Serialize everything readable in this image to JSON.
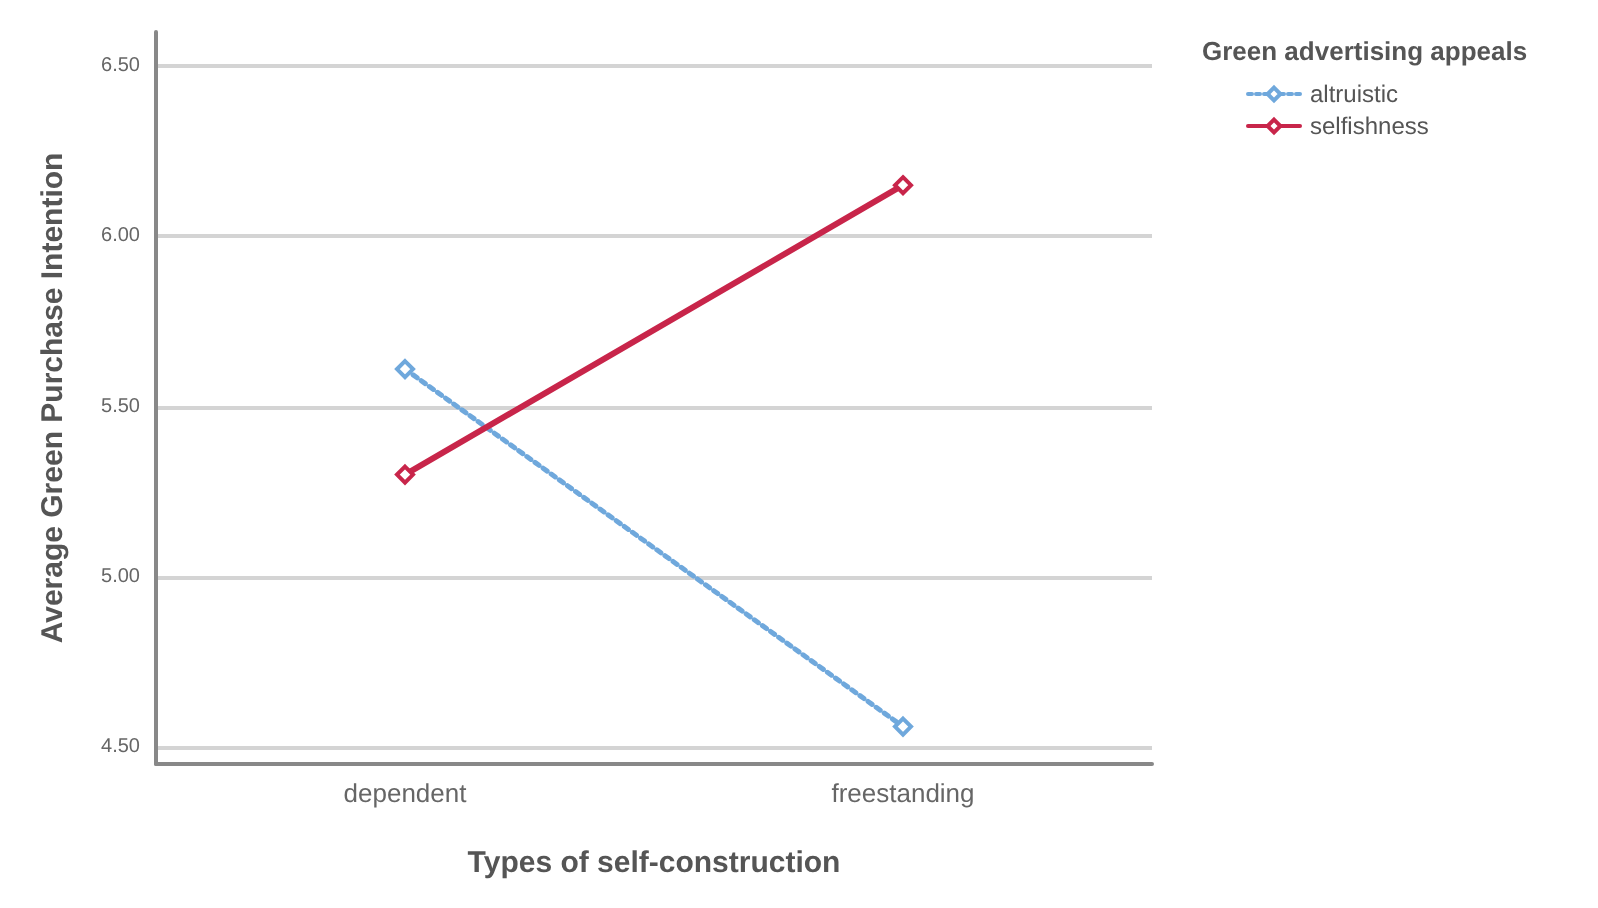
{
  "chart_data": {
    "type": "line",
    "xlabel": "Types of self-construction",
    "ylabel": "Average Green Purchase Intention",
    "legend_title": "Green advertising appeals",
    "categories": [
      "dependent",
      "freestanding"
    ],
    "series": [
      {
        "name": "altruistic",
        "color": "#6fa8dc",
        "values": [
          5.61,
          4.56
        ],
        "line_style": "dotted"
      },
      {
        "name": "selfishness",
        "color": "#c8254a",
        "values": [
          5.3,
          6.15
        ],
        "line_style": "solid"
      }
    ],
    "ylim": [
      4.45,
      6.6
    ],
    "yticks": [
      {
        "value": 4.5,
        "label": "4.50"
      },
      {
        "value": 5,
        "label": "5.00"
      },
      {
        "value": 5.5,
        "label": "5.50"
      },
      {
        "value": 6,
        "label": "6.00"
      },
      {
        "value": 6.5,
        "label": "6.50"
      }
    ],
    "grid": "y",
    "legend": "top right",
    "marker": "diamond"
  }
}
